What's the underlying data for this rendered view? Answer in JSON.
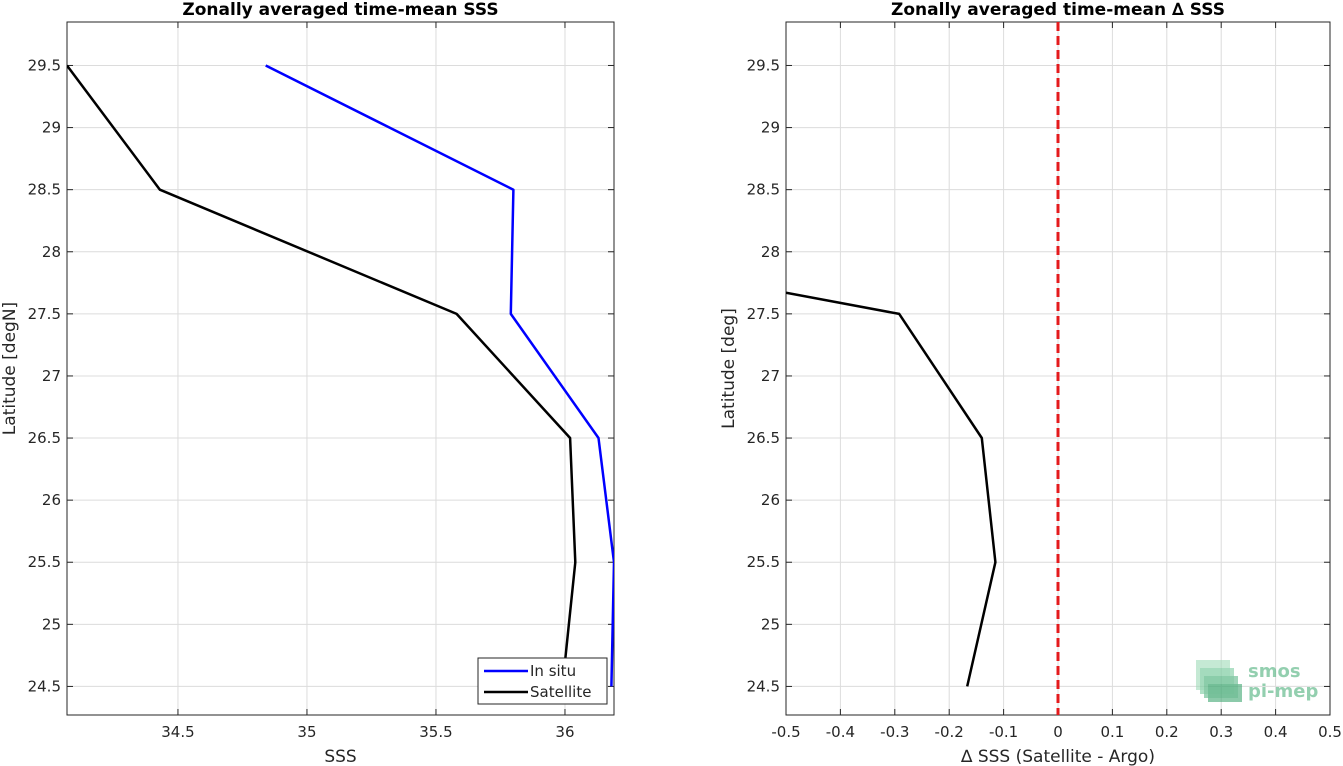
{
  "chart_data": [
    {
      "type": "line",
      "title": "Zonally averaged time-mean SSS",
      "xlabel": "SSS",
      "ylabel": "Latitude [degN]",
      "xlim": [
        34.07,
        36.19
      ],
      "ylim": [
        24.27,
        29.85
      ],
      "xticks": [
        34.5,
        35,
        35.5,
        36
      ],
      "xtick_labels": [
        "34.5",
        "35",
        "35.5",
        "36"
      ],
      "yticks": [
        24.5,
        25,
        25.5,
        26,
        26.5,
        27,
        27.5,
        28,
        28.5,
        29,
        29.5
      ],
      "ytick_labels": [
        "24.5",
        "25",
        "25.5",
        "26",
        "26.5",
        "27",
        "27.5",
        "28",
        "28.5",
        "29",
        "29.5"
      ],
      "grid": true,
      "legend_position": "bottom-right",
      "series": [
        {
          "name": "In situ",
          "color": "#0000ff",
          "points": [
            [
              36.18,
              24.5
            ],
            [
              36.19,
              25.5
            ],
            [
              36.13,
              26.5
            ],
            [
              35.79,
              27.5
            ],
            [
              35.8,
              28.5
            ],
            [
              34.84,
              29.5
            ]
          ]
        },
        {
          "name": "Satellite",
          "color": "#000000",
          "points": [
            [
              36.0,
              24.7
            ],
            [
              36.04,
              25.5
            ],
            [
              36.02,
              26.5
            ],
            [
              35.58,
              27.5
            ],
            [
              34.43,
              28.5
            ],
            [
              34.07,
              29.5
            ]
          ]
        }
      ]
    },
    {
      "type": "line",
      "title": "Zonally averaged time-mean ∆ SSS",
      "xlabel": "∆ SSS (Satellite - Argo)",
      "ylabel": "Latitude [deg]",
      "xlim": [
        -0.5,
        0.5
      ],
      "ylim": [
        24.27,
        29.85
      ],
      "xticks": [
        -0.5,
        -0.4,
        -0.3,
        -0.2,
        -0.1,
        0,
        0.1,
        0.2,
        0.3,
        0.4,
        0.5
      ],
      "xtick_labels": [
        "-0.5",
        "-0.4",
        "-0.3",
        "-0.2",
        "-0.1",
        "0",
        "0.1",
        "0.2",
        "0.3",
        "0.4",
        "0.5"
      ],
      "yticks": [
        24.5,
        25,
        25.5,
        26,
        26.5,
        27,
        27.5,
        28,
        28.5,
        29,
        29.5
      ],
      "ytick_labels": [
        "24.5",
        "25",
        "25.5",
        "26",
        "26.5",
        "27",
        "27.5",
        "28",
        "28.5",
        "29",
        "29.5"
      ],
      "grid": true,
      "series": [
        {
          "color": "#000000",
          "points": [
            [
              -0.167,
              24.5
            ],
            [
              -0.115,
              25.5
            ],
            [
              -0.14,
              26.5
            ],
            [
              -0.292,
              27.5
            ],
            [
              -0.5,
              27.67
            ]
          ]
        }
      ],
      "reference_line": {
        "x": 0,
        "color": "#e41a1c",
        "style": "dashed"
      }
    }
  ],
  "logo": {
    "line1": "smos",
    "line2": "pi-mep"
  }
}
